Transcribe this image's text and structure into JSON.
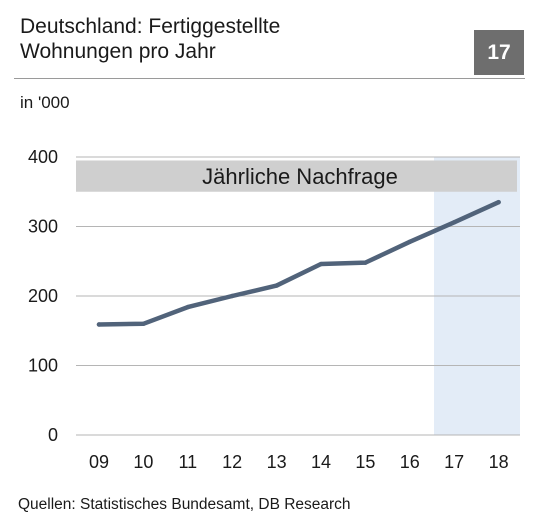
{
  "header": {
    "title_line1": "Deutschland:  Fertiggestellte",
    "title_line2": "Wohnungen pro Jahr",
    "badge": "17",
    "unit": "in '000"
  },
  "source": "Quellen: Statistisches Bundesamt, DB Research",
  "colors": {
    "line": "#51637a",
    "band": "#cfcfcf",
    "forecast_shade": "#e3ecf7",
    "grid": "#b5b5b5",
    "badge": "#6e6e6e"
  },
  "chart_data": {
    "type": "line",
    "title": "",
    "xlabel": "",
    "ylabel": "in '000",
    "categories": [
      "09",
      "10",
      "11",
      "12",
      "13",
      "14",
      "15",
      "16",
      "17",
      "18"
    ],
    "series": [
      {
        "values": [
          159,
          160,
          184,
          200,
          215,
          246,
          248,
          278,
          306,
          335
        ]
      }
    ],
    "ylim": [
      0,
      400
    ],
    "yticks": [
      0,
      100,
      200,
      300,
      400
    ],
    "grid": true,
    "band": {
      "label": "Jährliche Nachfrage",
      "from": 350,
      "to": 395
    },
    "shaded_from_category": "17"
  }
}
